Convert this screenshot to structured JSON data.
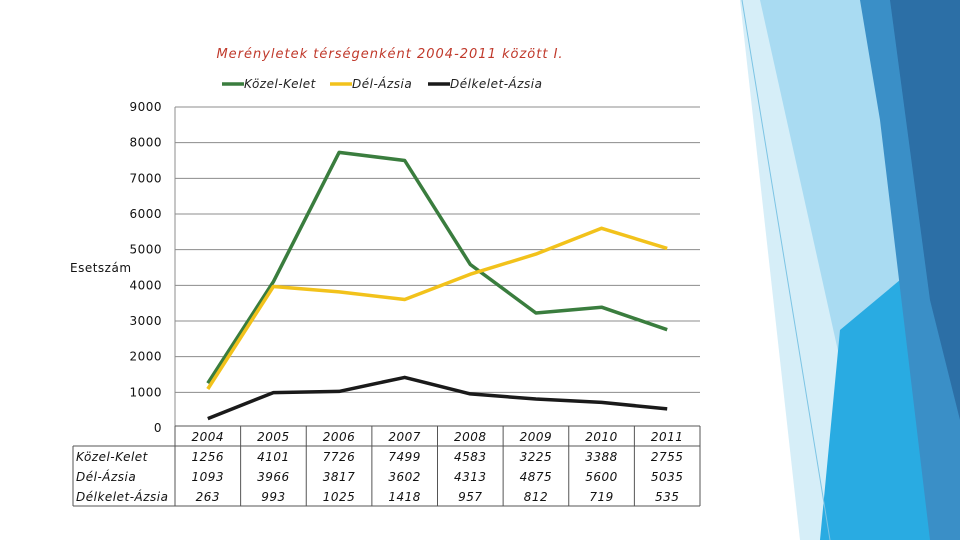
{
  "colors": {
    "kozel_kelet": "#3a7d3e",
    "del_azsia": "#f2c21b",
    "delkelet_azsia": "#1a1a1a",
    "title": "#c0392b",
    "grid": "#8c8c8c"
  },
  "chart_data": {
    "type": "line",
    "title": "Merényletek térségenként  2004-2011 között I.",
    "ylabel": "Esetszám",
    "xlabel": "",
    "ylim": [
      0,
      9000
    ],
    "yticks": [
      0,
      1000,
      2000,
      3000,
      4000,
      5000,
      6000,
      7000,
      8000,
      9000
    ],
    "grid": true,
    "legend_position": "top",
    "categories": [
      "2004",
      "2005",
      "2006",
      "2007",
      "2008",
      "2009",
      "2010",
      "2011"
    ],
    "series": [
      {
        "name": "Közel-Kelet",
        "color": "#3a7d3e",
        "values": [
          1256,
          4101,
          7726,
          7499,
          4583,
          3225,
          3388,
          2755
        ]
      },
      {
        "name": "Dél-Ázsia",
        "color": "#f2c21b",
        "values": [
          1093,
          3966,
          3817,
          3602,
          4313,
          4875,
          5600,
          5035
        ]
      },
      {
        "name": "Délkelet-Ázsia",
        "color": "#1a1a1a",
        "values": [
          263,
          993,
          1025,
          1418,
          957,
          812,
          719,
          535
        ]
      }
    ],
    "table_rows": [
      {
        "label": "Közel-Kelet",
        "values": [
          "1256",
          "4101",
          "7726",
          "7499",
          "4583",
          "3225",
          "3388",
          "2755"
        ]
      },
      {
        "label": "Dél-Ázsia",
        "values": [
          "1093",
          "3966",
          "3817",
          "3602",
          "4313",
          "4875",
          "5600",
          "5035"
        ]
      },
      {
        "label": "Délkelet-Ázsia",
        "values": [
          "263",
          "993",
          "1025",
          "1418",
          "957",
          "812",
          "719",
          "535"
        ]
      }
    ]
  }
}
